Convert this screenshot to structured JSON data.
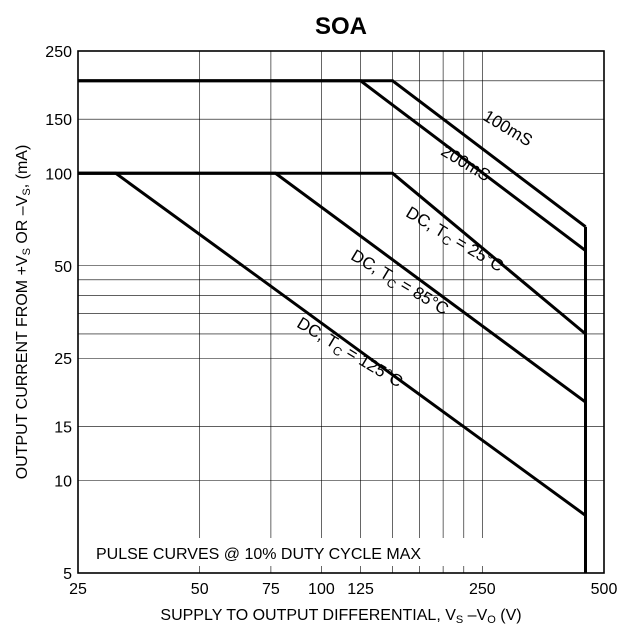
{
  "chart_data": {
    "type": "line",
    "title": "SOA",
    "xscale": "log",
    "yscale": "log",
    "xlim": [
      25,
      500
    ],
    "ylim": [
      5,
      250
    ],
    "grid": true,
    "xlabel": "SUPPLY TO OUTPUT DIFFERENTIAL, V",
    "xlabel_sub1": "S",
    "xlabel_mid": " –V",
    "xlabel_sub2": "O",
    "xlabel_tail": " (V)",
    "ylabel": "OUTPUT CURRENT FROM +V",
    "ylabel_sub1": "S",
    "ylabel_mid": " OR –V",
    "ylabel_sub2": "S",
    "ylabel_tail": ", (mA)",
    "x_ticks": [
      25,
      50,
      75,
      100,
      125,
      250,
      500
    ],
    "x_tick_labels": [
      "25",
      "50",
      "75",
      "100",
      "125",
      "250",
      "500"
    ],
    "y_ticks": [
      5,
      10,
      15,
      25,
      50,
      100,
      150,
      250
    ],
    "y_tick_labels": [
      "5",
      "10",
      "15",
      "25",
      "50",
      "100",
      "150",
      "250"
    ],
    "x_grid": [
      50,
      75,
      100,
      125,
      150,
      175,
      200,
      225,
      250
    ],
    "y_grid": [
      10,
      15,
      25,
      30,
      35,
      40,
      45,
      50,
      100,
      150,
      200
    ],
    "series": [
      {
        "name": "100mS",
        "x": [
          25,
          150,
          450
        ],
        "y": [
          200,
          200,
          67
        ]
      },
      {
        "name": "200mS",
        "x": [
          25,
          125,
          450
        ],
        "y": [
          200,
          200,
          56
        ]
      },
      {
        "name_prefix": "DC, T",
        "name_sub": "C",
        "name_suffix": " = 25°C",
        "x": [
          25,
          150,
          450
        ],
        "y": [
          100,
          100,
          30
        ]
      },
      {
        "name_prefix": "DC, T",
        "name_sub": "C",
        "name_suffix": " = 85°C",
        "x": [
          25,
          77,
          450
        ],
        "y": [
          100,
          100,
          18
        ]
      },
      {
        "name_prefix": "DC, T",
        "name_sub": "C",
        "name_suffix": " = 125°C",
        "x": [
          25,
          31,
          450
        ],
        "y": [
          100,
          100,
          7.7
        ]
      }
    ],
    "vertical_limit": {
      "x": 450,
      "y": [
        5,
        67
      ]
    },
    "annotation": "PULSE CURVES @ 10% DUTY CYCLE MAX"
  }
}
